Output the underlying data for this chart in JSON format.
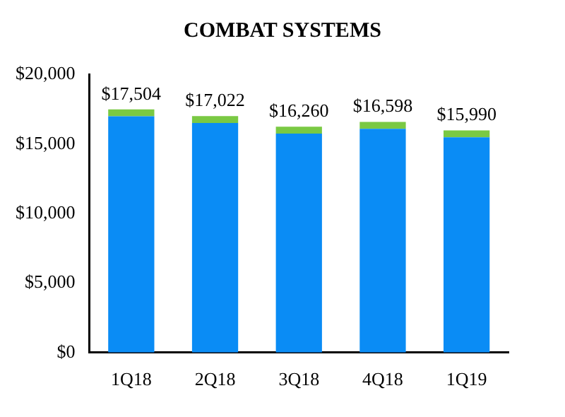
{
  "chart_data": {
    "type": "bar",
    "title": "COMBAT SYSTEMS",
    "categories": [
      "1Q18",
      "2Q18",
      "3Q18",
      "4Q18",
      "1Q19"
    ],
    "stacked": true,
    "series": [
      {
        "color": "#0a8cf5",
        "values": [
          17004,
          16522,
          15760,
          16098,
          15490
        ]
      },
      {
        "color": "#7ac943",
        "values": [
          500,
          500,
          500,
          500,
          500
        ]
      }
    ],
    "totals": [
      "$17,504",
      "$17,022",
      "$16,260",
      "$16,598",
      "$15,990"
    ],
    "ylim": [
      0,
      20000
    ],
    "yticks": [
      {
        "value": 0,
        "label": "$0"
      },
      {
        "value": 5000,
        "label": "$5,000"
      },
      {
        "value": 10000,
        "label": "$10,000"
      },
      {
        "value": 15000,
        "label": "$15,000"
      },
      {
        "value": 20000,
        "label": "$20,000"
      }
    ],
    "grid": false,
    "legend": false
  }
}
